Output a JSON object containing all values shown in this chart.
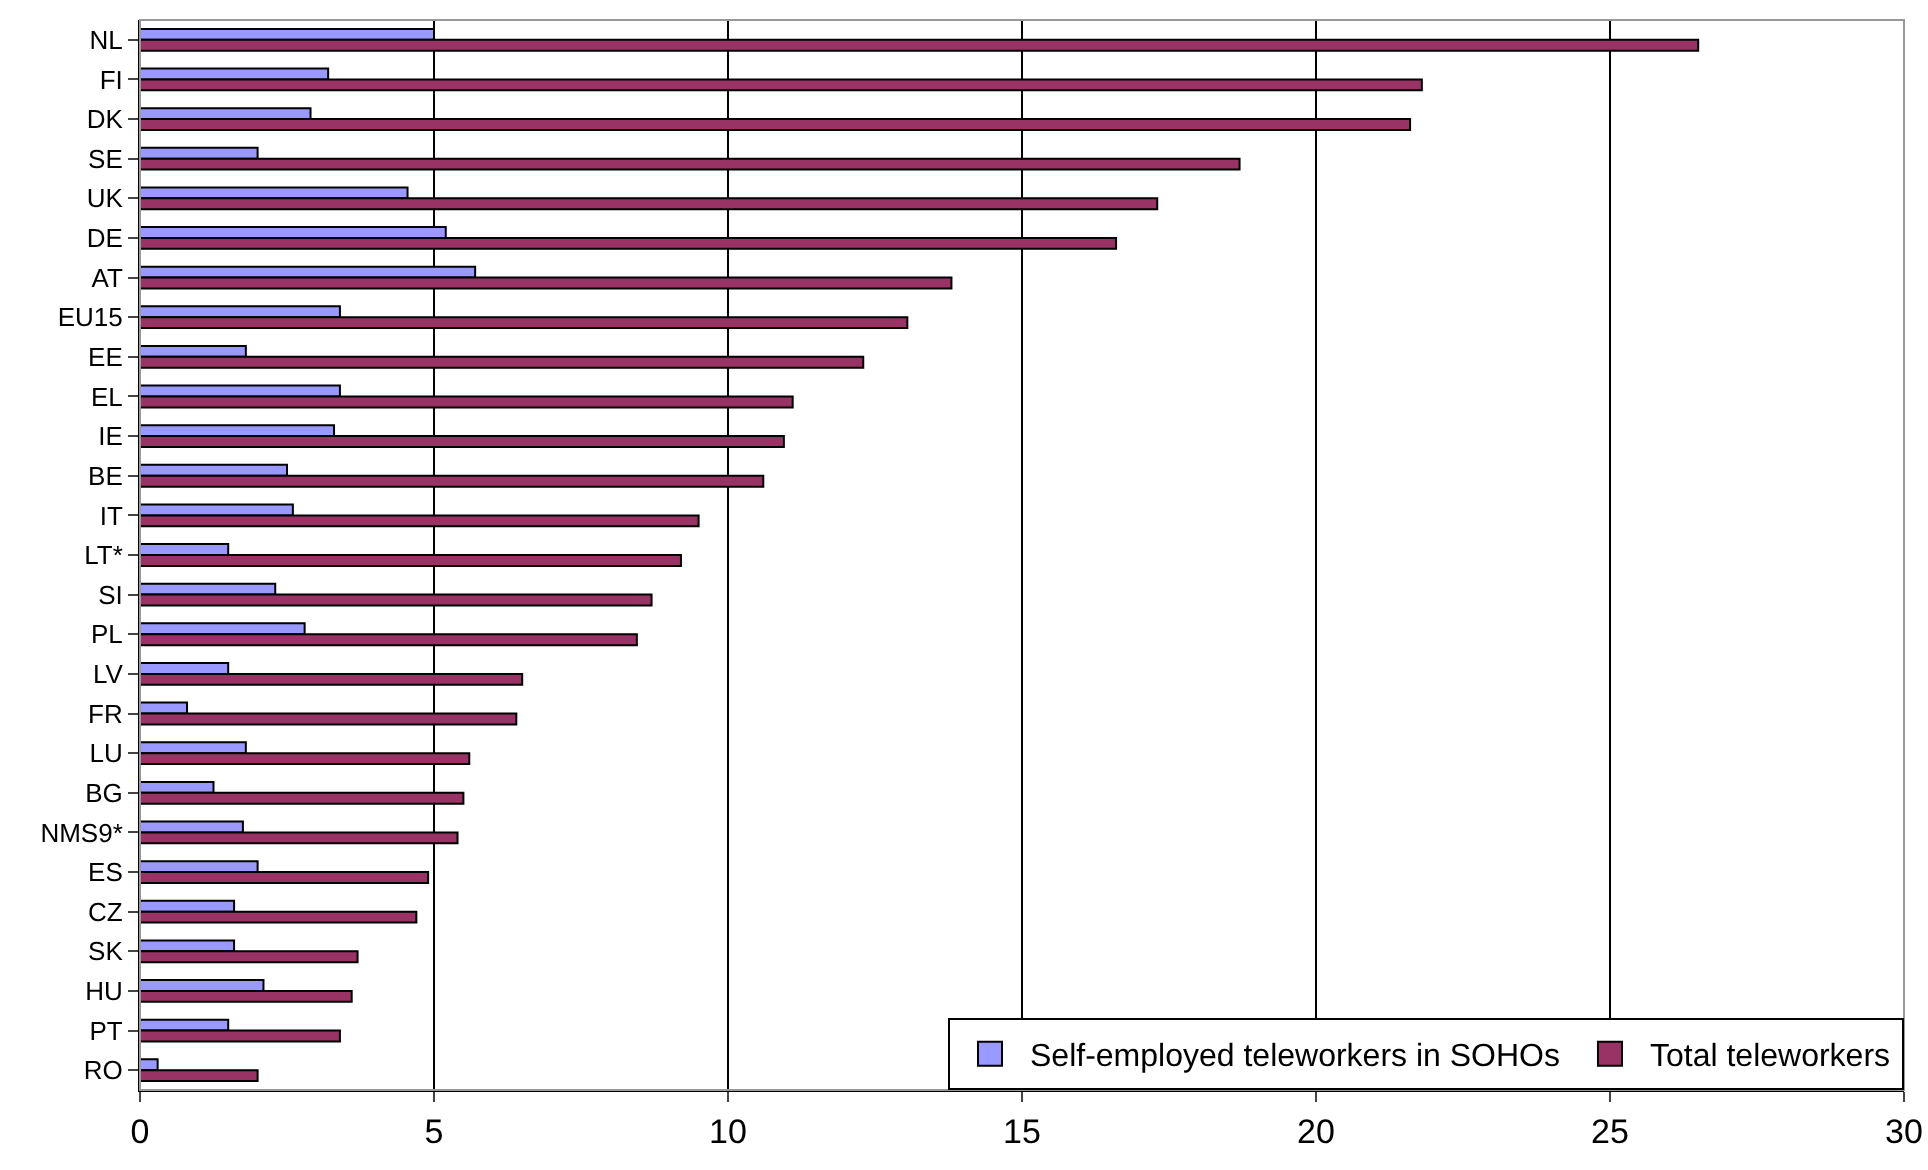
{
  "chart_data": {
    "type": "bar",
    "orientation": "horizontal",
    "categories": [
      "NL",
      "FI",
      "DK",
      "SE",
      "UK",
      "DE",
      "AT",
      "EU15",
      "EE",
      "EL",
      "IE",
      "BE",
      "IT",
      "LT*",
      "SI",
      "PL",
      "LV",
      "FR",
      "LU",
      "BG",
      "NMS9*",
      "ES",
      "CZ",
      "SK",
      "HU",
      "PT",
      "RO"
    ],
    "series": [
      {
        "name": "Self-employed teleworkers in SOHOs",
        "color": "#9999ff",
        "values": [
          5.0,
          3.2,
          2.9,
          2.0,
          4.55,
          5.2,
          5.7,
          3.4,
          1.8,
          3.4,
          3.3,
          2.5,
          2.6,
          1.5,
          2.3,
          2.8,
          1.5,
          0.8,
          1.8,
          1.25,
          1.75,
          2.0,
          1.6,
          1.6,
          2.1,
          1.5,
          0.3
        ]
      },
      {
        "name": "Total teleworkers",
        "color": "#993366",
        "values": [
          26.5,
          21.8,
          21.6,
          18.7,
          17.3,
          16.6,
          13.8,
          13.05,
          12.3,
          11.1,
          10.95,
          10.6,
          9.5,
          9.2,
          8.7,
          8.45,
          6.5,
          6.4,
          5.6,
          5.5,
          5.4,
          4.9,
          4.7,
          3.7,
          3.6,
          3.4,
          2.0
        ]
      }
    ],
    "xlim": [
      0,
      30
    ],
    "xticks": [
      0,
      5,
      10,
      15,
      20,
      25,
      30
    ],
    "grid": "x",
    "legend": "bottom right"
  }
}
